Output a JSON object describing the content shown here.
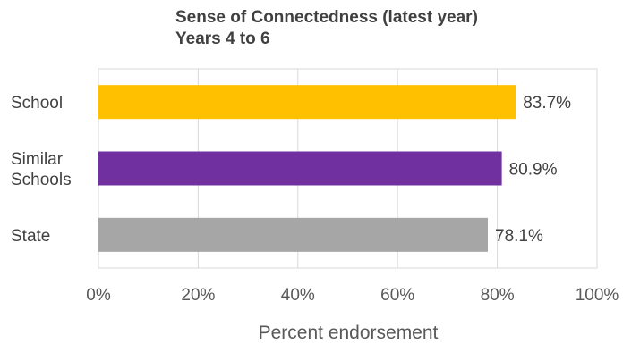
{
  "chart_data": {
    "type": "bar",
    "orientation": "horizontal",
    "title_lines": [
      "Sense of Connectedness (latest year)",
      "Years 4 to 6"
    ],
    "categories": [
      {
        "lines": [
          "School"
        ],
        "value": 83.7,
        "label": "83.7%",
        "color": "#ffc000"
      },
      {
        "lines": [
          "Similar",
          "Schools"
        ],
        "value": 80.9,
        "label": "80.9%",
        "color": "#7030a0"
      },
      {
        "lines": [
          "State"
        ],
        "value": 78.1,
        "label": "78.1%",
        "color": "#a6a6a6"
      }
    ],
    "xlim": [
      0,
      100
    ],
    "xticks": [
      0,
      20,
      40,
      60,
      80,
      100
    ],
    "xtick_labels": [
      "0%",
      "20%",
      "40%",
      "60%",
      "80%",
      "100%"
    ],
    "xlabel": "Percent endorsement",
    "grid": true
  }
}
